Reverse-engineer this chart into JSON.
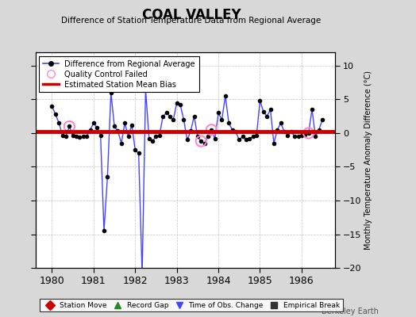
{
  "title": "COAL VALLEY",
  "subtitle": "Difference of Station Temperature Data from Regional Average",
  "ylabel_right": "Monthly Temperature Anomaly Difference (°C)",
  "background_color": "#d8d8d8",
  "plot_bg_color": "#ffffff",
  "bias_value": 0.2,
  "ylim": [
    -20,
    12
  ],
  "yticks": [
    -20,
    -15,
    -10,
    -5,
    0,
    5,
    10
  ],
  "xlim": [
    1979.6,
    1986.8
  ],
  "xticks": [
    1980,
    1981,
    1982,
    1983,
    1984,
    1985,
    1986
  ],
  "line_color": "#4444ff",
  "dot_color": "#000000",
  "bias_color": "#cc0000",
  "qc_color": "#ff88cc",
  "watermark": "Berkeley Earth",
  "times": [
    1980.0,
    1980.083,
    1980.167,
    1980.25,
    1980.333,
    1980.417,
    1980.5,
    1980.583,
    1980.667,
    1980.75,
    1980.833,
    1980.917,
    1981.0,
    1981.083,
    1981.167,
    1981.25,
    1981.333,
    1981.417,
    1981.5,
    1981.583,
    1981.667,
    1981.75,
    1981.833,
    1981.917,
    1982.0,
    1982.083,
    1982.167,
    1982.25,
    1982.333,
    1982.417,
    1982.5,
    1982.583,
    1982.667,
    1982.75,
    1982.833,
    1982.917,
    1983.0,
    1983.083,
    1983.167,
    1983.25,
    1983.333,
    1983.417,
    1983.5,
    1983.583,
    1983.667,
    1983.75,
    1983.833,
    1983.917,
    1984.0,
    1984.083,
    1984.167,
    1984.25,
    1984.333,
    1984.417,
    1984.5,
    1984.583,
    1984.667,
    1984.75,
    1984.833,
    1984.917,
    1985.0,
    1985.083,
    1985.167,
    1985.25,
    1985.333,
    1985.417,
    1985.5,
    1985.583,
    1985.667,
    1985.75,
    1985.833,
    1985.917,
    1986.0,
    1986.083,
    1986.167,
    1986.25,
    1986.333,
    1986.417,
    1986.5
  ],
  "values": [
    4.0,
    2.8,
    1.5,
    -0.3,
    -0.5,
    1.0,
    -0.4,
    -0.5,
    -0.6,
    -0.5,
    -0.5,
    0.5,
    1.5,
    0.8,
    -0.3,
    -14.5,
    -6.5,
    6.0,
    1.0,
    0.3,
    -1.5,
    1.5,
    -0.5,
    1.2,
    -2.5,
    -3.0,
    -21.0,
    6.5,
    -0.8,
    -1.2,
    -0.5,
    -0.3,
    2.5,
    3.0,
    2.5,
    2.0,
    4.5,
    4.2,
    2.0,
    -1.0,
    0.3,
    2.5,
    -0.5,
    -1.2,
    -1.5,
    -0.5,
    0.5,
    -0.8,
    3.0,
    2.0,
    5.5,
    1.5,
    0.5,
    0.2,
    -1.0,
    -0.5,
    -1.0,
    -0.8,
    -0.5,
    -0.3,
    4.8,
    3.2,
    2.5,
    3.5,
    -1.5,
    0.5,
    1.5,
    0.2,
    -0.3,
    0.2,
    -0.5,
    -0.5,
    -0.3,
    -0.2,
    0.0,
    3.5,
    -0.5,
    0.5,
    2.0
  ],
  "qc_failed_indices": [
    5,
    26,
    43,
    46,
    74
  ],
  "bottom_legend": [
    {
      "label": "Station Move",
      "marker": "D",
      "color": "#cc0000"
    },
    {
      "label": "Record Gap",
      "marker": "^",
      "color": "#228B22"
    },
    {
      "label": "Time of Obs. Change",
      "marker": "v",
      "color": "#4444ff"
    },
    {
      "label": "Empirical Break",
      "marker": "s",
      "color": "#333333"
    }
  ]
}
